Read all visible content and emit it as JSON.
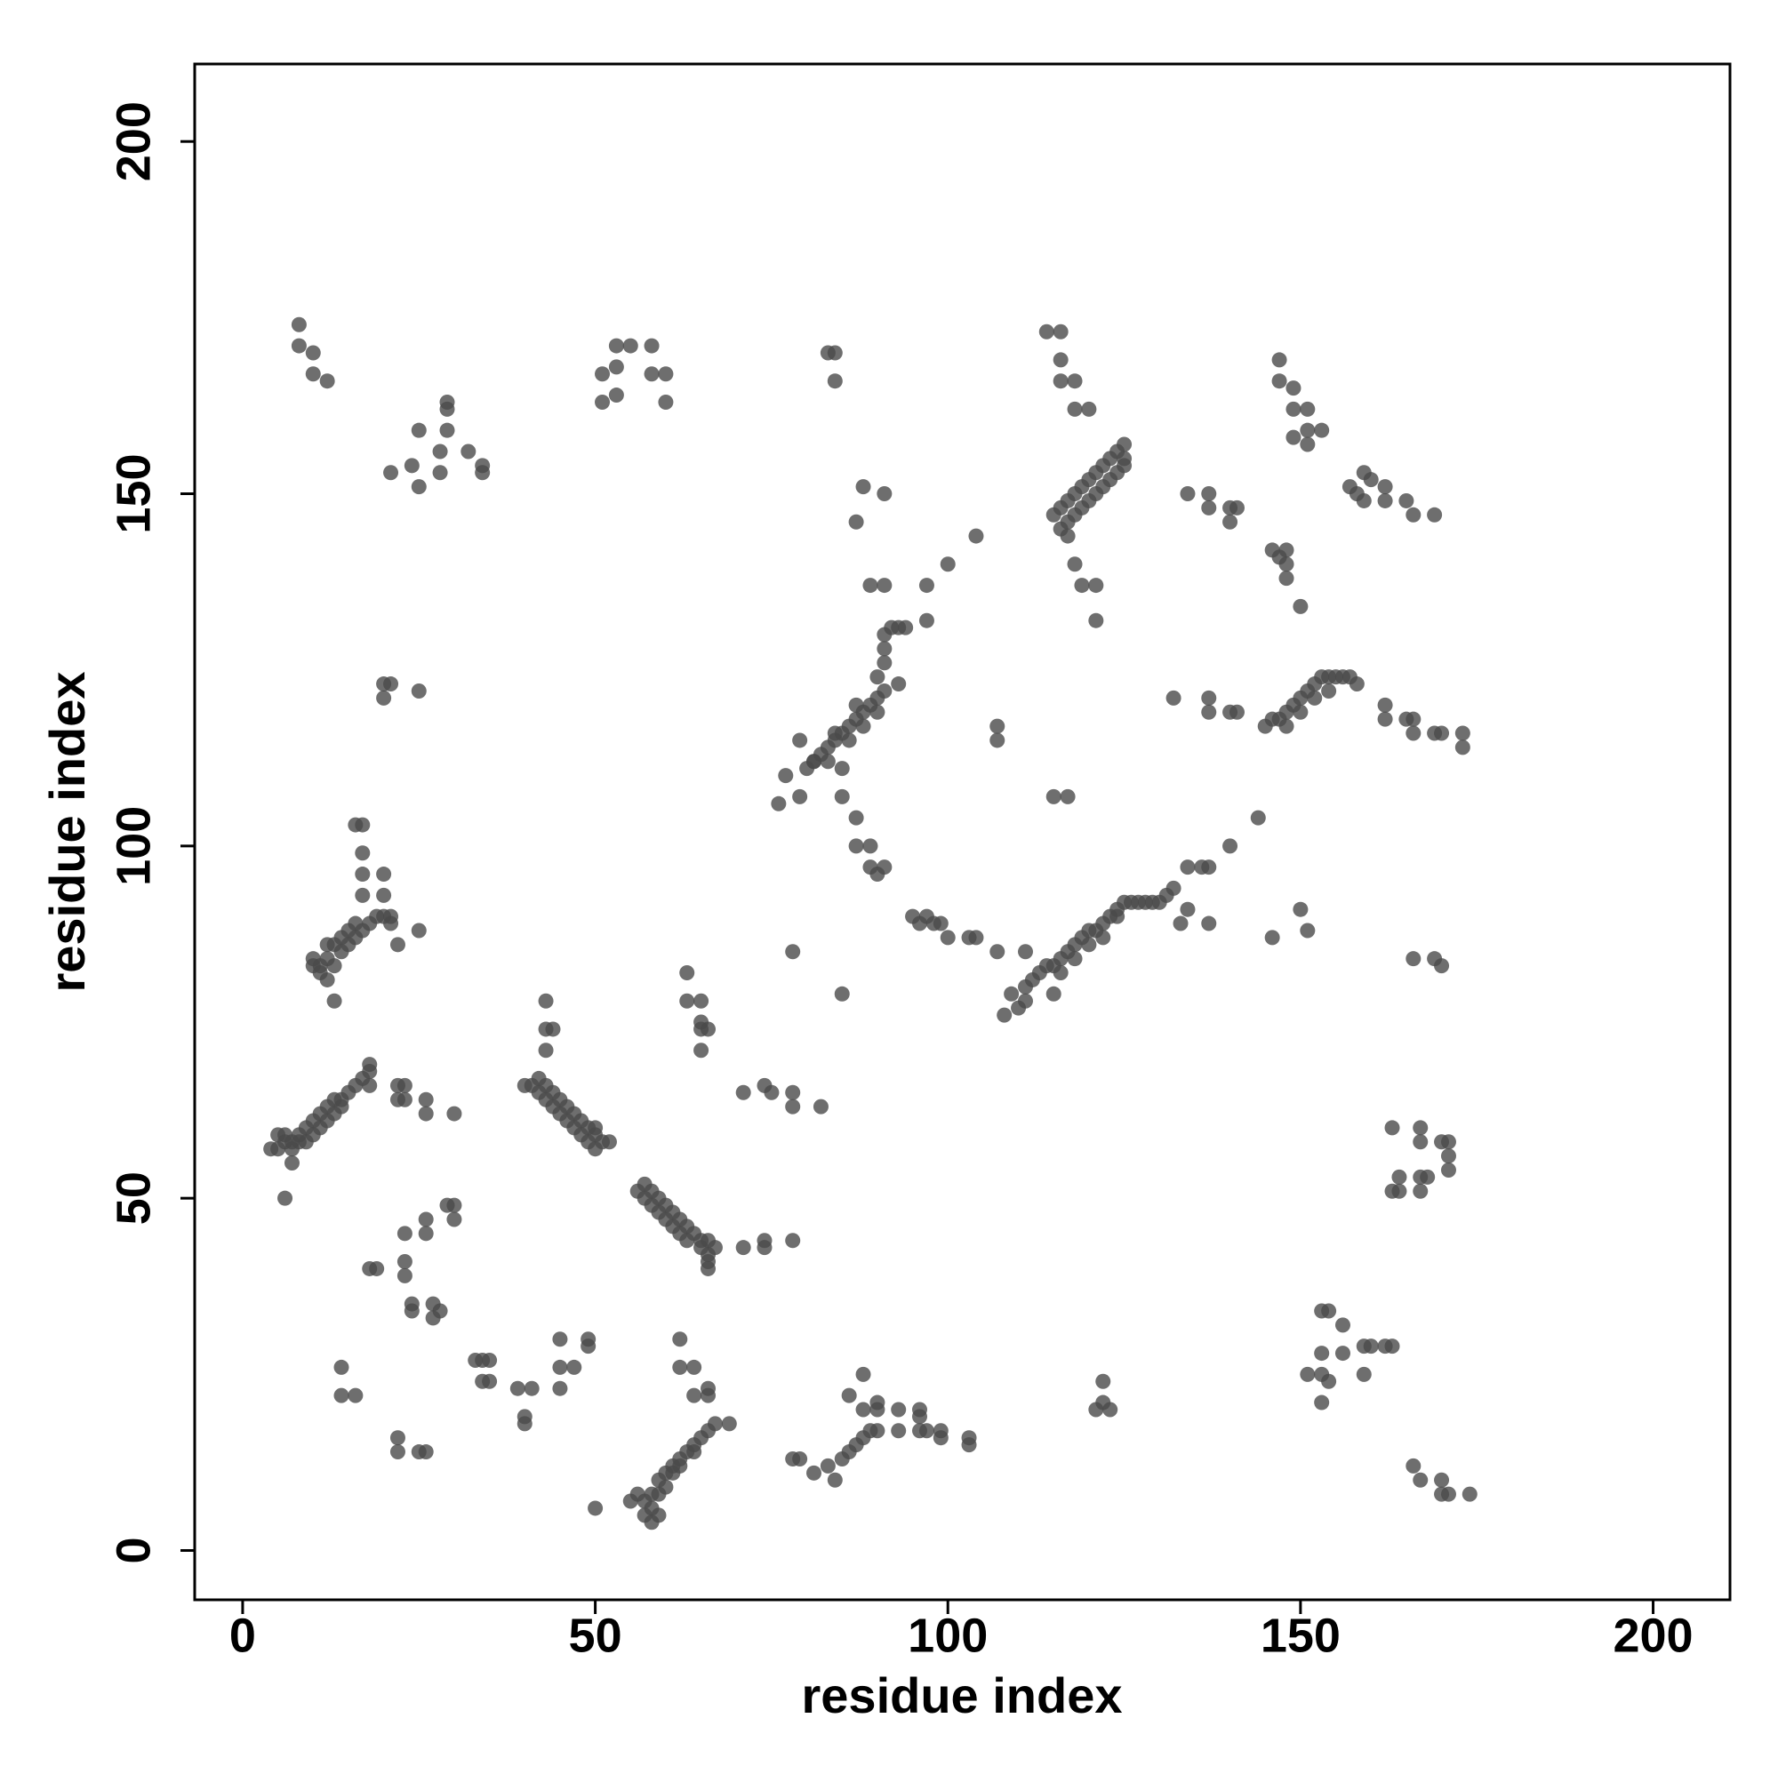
{
  "chart_data": {
    "type": "scatter",
    "xlabel": "residue index",
    "ylabel": "residue index",
    "xlim": [
      -6.8,
      210.9
    ],
    "ylim": [
      -7,
      211
    ],
    "xticks": [
      0,
      50,
      100,
      150,
      200
    ],
    "yticks": [
      0,
      50,
      100,
      150,
      200
    ],
    "color": "#4a4a4a",
    "opacity": 0.8,
    "x": [
      8,
      8,
      10,
      10,
      12,
      21,
      24,
      25,
      25,
      28,
      28,
      29,
      29,
      29,
      32,
      34,
      34,
      51,
      51,
      53,
      53,
      53,
      55,
      58,
      58,
      60,
      60,
      83,
      84,
      84,
      114,
      116,
      116,
      116,
      118,
      118,
      120,
      147,
      147,
      149,
      149,
      151,
      151,
      153,
      149,
      151,
      157,
      159,
      159,
      162,
      162,
      165,
      166,
      169,
      158,
      160,
      134,
      137,
      137,
      140,
      141,
      140,
      146,
      148,
      148,
      150,
      148,
      147,
      115,
      116,
      117,
      118,
      119,
      120,
      121,
      122,
      123,
      124,
      125,
      116,
      117,
      118,
      119,
      120,
      121,
      122,
      123,
      124,
      125,
      125,
      117,
      118,
      119,
      121,
      121,
      80,
      81,
      82,
      83,
      84,
      85,
      86,
      87,
      88,
      89,
      90,
      91,
      90,
      91,
      91,
      91,
      92,
      93,
      94,
      86,
      88,
      90,
      83,
      84,
      87,
      88,
      91,
      87,
      89,
      91,
      97,
      97,
      100,
      104,
      93,
      145,
      146,
      147,
      148,
      149,
      150,
      151,
      152,
      153,
      154,
      155,
      156,
      157,
      158,
      148,
      150,
      152,
      154,
      132,
      137,
      137,
      140,
      141,
      162,
      162,
      165,
      166,
      166,
      169,
      170,
      173,
      173,
      107,
      107,
      115,
      117,
      79,
      77,
      76,
      79,
      81,
      85,
      85,
      87,
      87,
      89,
      89,
      91,
      90,
      111,
      112,
      113,
      114,
      115,
      116,
      117,
      118,
      119,
      120,
      121,
      122,
      123,
      124,
      125,
      126,
      127,
      128,
      129,
      130,
      131,
      132,
      110,
      111,
      116,
      118,
      120,
      122,
      124,
      95,
      96,
      97,
      98,
      99,
      134,
      136,
      137,
      133,
      137,
      134,
      140,
      144,
      146,
      150,
      151,
      108,
      109,
      111,
      100,
      103,
      104,
      107,
      78,
      85,
      115,
      166,
      169,
      170,
      163,
      167,
      167,
      170,
      171,
      171,
      171,
      164,
      167,
      168,
      163,
      164,
      167,
      153,
      154,
      156,
      153,
      156,
      159,
      160,
      162,
      163,
      151,
      153,
      159,
      153,
      154,
      166,
      167,
      170,
      171,
      174,
      170,
      122,
      121,
      123,
      122,
      78,
      79,
      81,
      83,
      84,
      85,
      86,
      87,
      88,
      89,
      90,
      86,
      88,
      88,
      90,
      90,
      93,
      93,
      96,
      96,
      96,
      99,
      99,
      103,
      103,
      97,
      57,
      57,
      58,
      58,
      59,
      59,
      60,
      60,
      61,
      61,
      62,
      62,
      63,
      64,
      64,
      65,
      66,
      55,
      56,
      58,
      59,
      62,
      62,
      64,
      64,
      66,
      66,
      67,
      69,
      50,
      45,
      49,
      49,
      45,
      47,
      45,
      39,
      41,
      40,
      40,
      33,
      34,
      35,
      34,
      35,
      14,
      14,
      16,
      22,
      22,
      25,
      26,
      18,
      19,
      23,
      23,
      23,
      26,
      26,
      24,
      24,
      27,
      27,
      28,
      29,
      30,
      30,
      56,
      57,
      57,
      58,
      58,
      59,
      59,
      60,
      60,
      61,
      61,
      62,
      62,
      63,
      63,
      64,
      65,
      65,
      66,
      67,
      66,
      71,
      74,
      74,
      78,
      66,
      66,
      40,
      41,
      42,
      42,
      43,
      43,
      44,
      44,
      45,
      45,
      46,
      46,
      47,
      47,
      48,
      48,
      49,
      49,
      50,
      50,
      51,
      52,
      50,
      43,
      43,
      44,
      43,
      63,
      63,
      65,
      65,
      65,
      66,
      65,
      71,
      74,
      75,
      78,
      78,
      82,
      4,
      5,
      5,
      6,
      6,
      7,
      7,
      8,
      8,
      9,
      9,
      10,
      10,
      11,
      11,
      12,
      12,
      13,
      13,
      14,
      14,
      15,
      16,
      17,
      18,
      18,
      7,
      18,
      22,
      23,
      22,
      23,
      26,
      26,
      30,
      6,
      10,
      10,
      11,
      11,
      12,
      12,
      13,
      13,
      14,
      14,
      15,
      15,
      16,
      16,
      17,
      18,
      19,
      20,
      21,
      21,
      12,
      16,
      17,
      17,
      17,
      20,
      17,
      20,
      22,
      25,
      13,
      20,
      21,
      25,
      20
    ],
    "values": [
      174,
      171,
      170,
      167,
      166,
      153,
      154,
      159,
      151,
      153,
      156,
      159,
      163,
      162,
      156,
      154,
      153,
      167,
      163,
      168,
      164,
      171,
      171,
      171,
      167,
      167,
      163,
      170,
      170,
      166,
      173,
      173,
      169,
      166,
      166,
      162,
      162,
      169,
      166,
      165,
      162,
      162,
      159,
      159,
      158,
      157,
      151,
      153,
      149,
      149,
      151,
      149,
      147,
      147,
      150,
      152,
      150,
      150,
      148,
      148,
      148,
      146,
      142,
      142,
      138,
      134,
      140,
      141,
      147,
      148,
      149,
      150,
      151,
      152,
      153,
      154,
      155,
      156,
      157,
      145,
      146,
      147,
      148,
      149,
      150,
      151,
      152,
      153,
      154,
      155,
      144,
      140,
      137,
      137,
      132,
      111,
      112,
      113,
      114,
      115,
      116,
      117,
      118,
      119,
      120,
      121,
      122,
      124,
      126,
      128,
      130,
      131,
      131,
      131,
      115,
      117,
      119,
      112,
      116,
      120,
      151,
      150,
      146,
      137,
      137,
      137,
      132,
      140,
      144,
      123,
      117,
      118,
      118,
      119,
      120,
      121,
      122,
      123,
      124,
      124,
      124,
      124,
      124,
      123,
      117,
      119,
      121,
      122,
      121,
      121,
      119,
      119,
      119,
      120,
      118,
      118,
      118,
      116,
      116,
      116,
      116,
      114,
      117,
      115,
      107,
      107,
      115,
      110,
      106,
      107,
      112,
      111,
      107,
      104,
      100,
      100,
      97,
      97,
      96,
      80,
      81,
      82,
      83,
      83,
      84,
      85,
      86,
      87,
      88,
      88,
      89,
      90,
      91,
      92,
      92,
      92,
      92,
      92,
      92,
      93,
      94,
      77,
      78,
      82,
      84,
      86,
      87,
      90,
      90,
      89,
      90,
      89,
      89,
      97,
      97,
      97,
      89,
      89,
      91,
      100,
      104,
      87,
      91,
      88,
      76,
      79,
      85,
      87,
      87,
      87,
      85,
      85,
      79,
      79,
      84,
      84,
      83,
      60,
      60,
      58,
      58,
      58,
      56,
      54,
      53,
      53,
      53,
      51,
      51,
      51,
      34,
      34,
      32,
      28,
      28,
      29,
      29,
      29,
      29,
      25,
      25,
      25,
      21,
      24,
      12,
      10,
      10,
      8,
      8,
      8,
      24,
      20,
      20,
      21,
      13,
      13,
      11,
      12,
      10,
      13,
      14,
      15,
      16,
      17,
      17,
      22,
      25,
      20,
      20,
      21,
      20,
      17,
      20,
      17,
      19,
      17,
      16,
      16,
      15,
      17,
      5,
      7,
      6,
      8,
      8,
      10,
      9,
      11,
      11,
      12,
      12,
      13,
      14,
      14,
      15,
      16,
      17,
      7,
      8,
      4,
      5,
      30,
      26,
      26,
      22,
      22,
      23,
      18,
      18,
      6,
      30,
      30,
      29,
      26,
      26,
      23,
      23,
      23,
      19,
      18,
      27,
      27,
      27,
      24,
      24,
      26,
      22,
      22,
      16,
      14,
      14,
      14,
      40,
      40,
      41,
      39,
      45,
      47,
      45,
      35,
      34,
      35,
      33,
      34,
      49,
      49,
      47,
      51,
      50,
      52,
      51,
      49,
      50,
      48,
      49,
      47,
      48,
      46,
      47,
      45,
      46,
      44,
      45,
      44,
      43,
      42,
      43,
      44,
      43,
      44,
      43,
      44,
      41,
      40,
      66,
      66,
      65,
      67,
      64,
      66,
      63,
      65,
      62,
      64,
      63,
      61,
      62,
      60,
      61,
      59,
      60,
      58,
      59,
      57,
      58,
      58,
      60,
      78,
      74,
      74,
      71,
      82,
      78,
      78,
      75,
      74,
      74,
      71,
      65,
      66,
      65,
      65,
      63,
      63,
      57,
      57,
      59,
      58,
      59,
      57,
      58,
      59,
      58,
      60,
      58,
      61,
      59,
      62,
      60,
      63,
      61,
      64,
      62,
      64,
      63,
      65,
      66,
      67,
      68,
      69,
      55,
      66,
      66,
      66,
      64,
      64,
      64,
      62,
      62,
      50,
      83,
      84,
      82,
      83,
      84,
      86,
      83,
      86,
      85,
      87,
      86,
      88,
      87,
      89,
      88,
      89,
      90,
      90,
      89,
      90,
      81,
      103,
      103,
      99,
      96,
      96,
      93,
      93,
      86,
      88,
      78,
      123,
      123,
      122,
      121
    ]
  }
}
